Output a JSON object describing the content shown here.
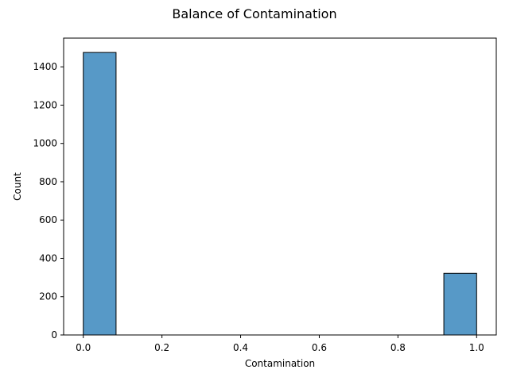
{
  "chart_data": {
    "type": "bar",
    "title": "Balance of Contamination",
    "xlabel": "Contamination",
    "ylabel": "Count",
    "xlim": [
      -0.05,
      1.05
    ],
    "ylim": [
      0,
      1550
    ],
    "xticks": [
      0.0,
      0.2,
      0.4,
      0.6,
      0.8,
      1.0
    ],
    "xtick_labels": [
      "0.0",
      "0.2",
      "0.4",
      "0.6",
      "0.8",
      "1.0"
    ],
    "yticks": [
      0,
      200,
      400,
      600,
      800,
      1000,
      1200,
      1400
    ],
    "ytick_labels": [
      "0",
      "200",
      "400",
      "600",
      "800",
      "1000",
      "1200",
      "1400"
    ],
    "bins": [
      {
        "x0": 0.0,
        "x1": 0.0833,
        "value": 1475
      },
      {
        "x0": 0.0833,
        "x1": 0.1667,
        "value": 0
      },
      {
        "x0": 0.1667,
        "x1": 0.25,
        "value": 0
      },
      {
        "x0": 0.25,
        "x1": 0.3333,
        "value": 0
      },
      {
        "x0": 0.3333,
        "x1": 0.4167,
        "value": 0
      },
      {
        "x0": 0.4167,
        "x1": 0.5,
        "value": 0
      },
      {
        "x0": 0.5,
        "x1": 0.5833,
        "value": 0
      },
      {
        "x0": 0.5833,
        "x1": 0.6667,
        "value": 0
      },
      {
        "x0": 0.6667,
        "x1": 0.75,
        "value": 0
      },
      {
        "x0": 0.75,
        "x1": 0.8333,
        "value": 0
      },
      {
        "x0": 0.8333,
        "x1": 0.9167,
        "value": 0
      },
      {
        "x0": 0.9167,
        "x1": 1.0,
        "value": 322
      }
    ],
    "bar_color": "#5799c7",
    "bar_edge_color": "#000000",
    "grid": false,
    "legend": "none"
  }
}
